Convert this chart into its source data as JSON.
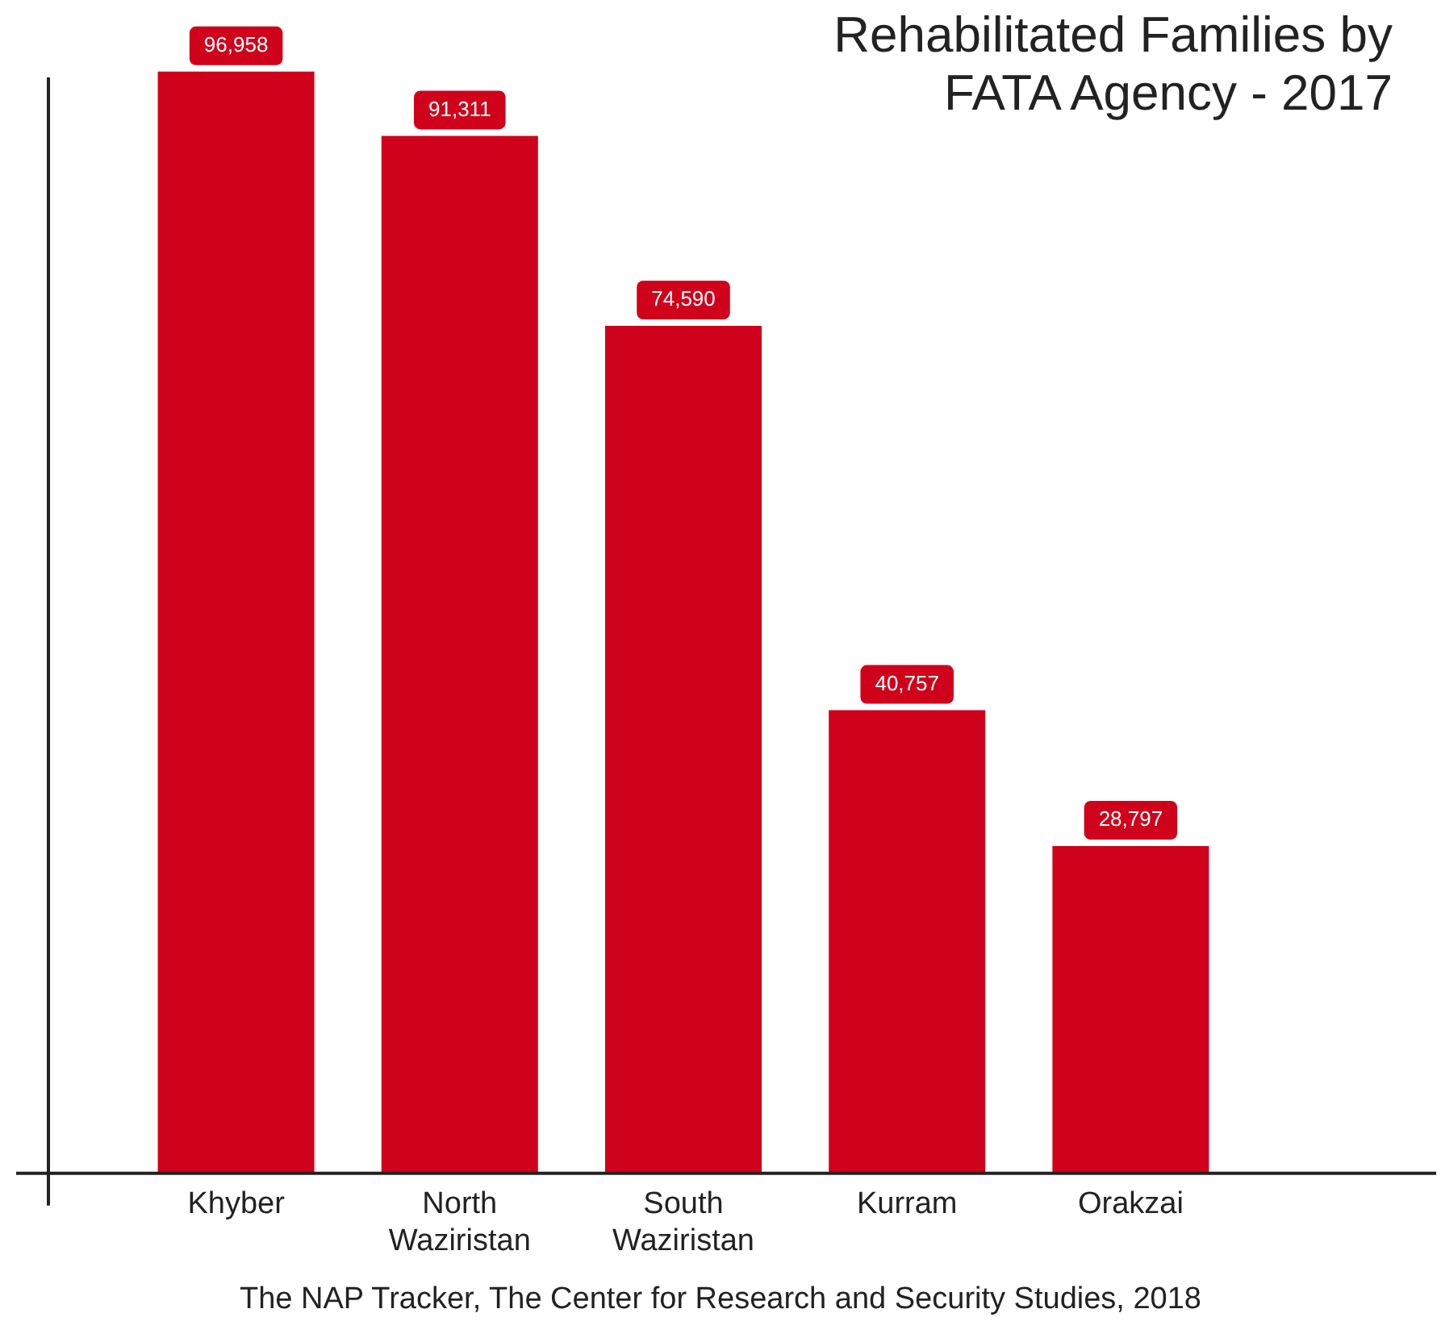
{
  "chart_data": {
    "type": "bar",
    "title": "Rehabilitated Families by FATA Agency - 2017",
    "categories": [
      "Khyber",
      "North Waziristan",
      "South Waziristan",
      "Kurram",
      "Orakzai"
    ],
    "values": [
      96958,
      91311,
      74590,
      40757,
      28797
    ],
    "color": "#d0021b",
    "value_labels": [
      "96,958",
      "91,311",
      "74,590",
      "40,757",
      "28,797"
    ],
    "grid": false,
    "legend": false,
    "annotations": [
      "The NAP Tracker, The Center for Research and Security Studies, 2018"
    ]
  }
}
